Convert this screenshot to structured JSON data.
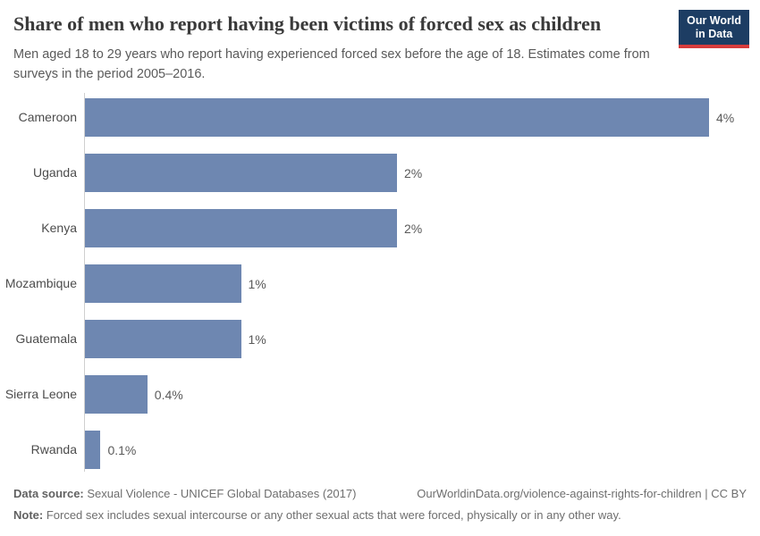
{
  "header": {
    "title": "Share of men who report having been victims of forced sex as children",
    "subtitle": "Men aged 18 to 29 years who report having experienced forced sex before the age of 18. Estimates come from surveys in the period 2005–2016.",
    "logo": {
      "line1": "Our World",
      "line2": "in Data",
      "bg_color": "#1d3d63",
      "stripe_color": "#d73c3c"
    }
  },
  "chart_data": {
    "type": "bar",
    "orientation": "horizontal",
    "title": "Share of men who report having been victims of forced sex as children",
    "subtitle": "Men aged 18 to 29 years who report having experienced forced sex before the age of 18. Estimates come from surveys in the period 2005–2016.",
    "categories": [
      "Cameroon",
      "Uganda",
      "Kenya",
      "Mozambique",
      "Guatemala",
      "Sierra Leone",
      "Rwanda"
    ],
    "values": [
      4,
      2,
      2,
      1,
      1,
      0.4,
      0.1
    ],
    "value_labels": [
      "4%",
      "2%",
      "2%",
      "1%",
      "1%",
      "0.4%",
      "0.1%"
    ],
    "unit": "%",
    "xlim": [
      0,
      4
    ],
    "grid": false,
    "legend": "none",
    "bar_color": "#6e87b1",
    "axis_color": "#cfcfcf"
  },
  "footer": {
    "data_source": {
      "label": "Data source:",
      "value": " Sexual Violence - UNICEF Global Databases (2017)"
    },
    "link": "OurWorldinData.org/violence-against-rights-for-children | CC BY",
    "note": {
      "label": "Note:",
      "value": " Forced sex includes sexual intercourse or any other sexual acts that were forced, physically or in any other way."
    }
  }
}
